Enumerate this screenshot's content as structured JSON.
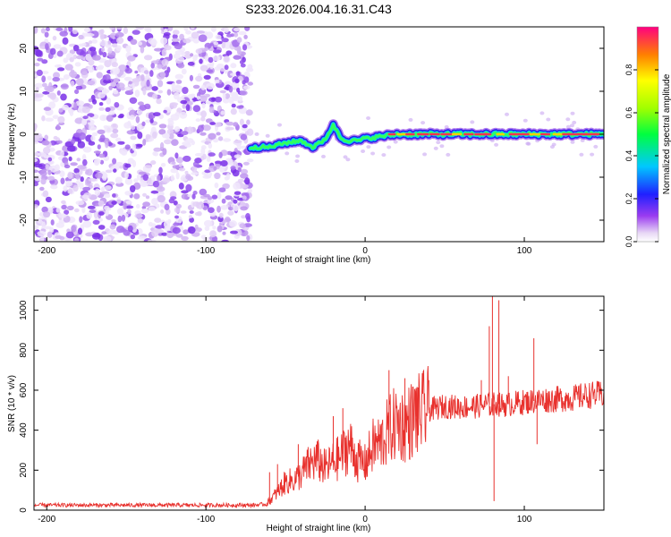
{
  "figure": {
    "title": "S233.2026.004.16.31.C43"
  },
  "chart_data": [
    {
      "type": "heatmap",
      "name": "spectrogram",
      "xlabel": "Height of straight line (km)",
      "ylabel": "Frequency (Hz)",
      "xlim": [
        -208,
        150
      ],
      "ylim": [
        -25,
        25
      ],
      "x_ticks": [
        -200,
        -100,
        0,
        100
      ],
      "y_ticks": [
        -20,
        -10,
        0,
        10,
        20
      ],
      "noise_region_x": [
        -208,
        -72
      ],
      "signal_track": {
        "x": [
          -72,
          -60,
          -50,
          -40,
          -33,
          -28,
          -25,
          -20,
          -18,
          -15,
          -10,
          -5,
          0,
          10,
          20,
          40,
          60,
          80,
          100,
          120,
          150
        ],
        "freq": [
          -3,
          -3,
          -2,
          -1.5,
          -3,
          -2,
          -1,
          2,
          1,
          -1,
          -1.5,
          -1.5,
          -1,
          -0.5,
          0,
          0,
          0,
          0,
          0,
          0,
          0
        ]
      },
      "colorbar": {
        "label": "Normalized spectral amplitude",
        "range": [
          0,
          1
        ],
        "ticks": [
          "0.0",
          "0.2",
          "0.4",
          "0.6",
          "0.8"
        ]
      }
    },
    {
      "type": "line",
      "name": "snr",
      "xlabel": "Height of straight line (km)",
      "ylabel": "SNR (10 * v/v)",
      "xlim": [
        -208,
        150
      ],
      "ylim": [
        0,
        1070
      ],
      "x_ticks": [
        -200,
        -100,
        0,
        100
      ],
      "y_ticks": [
        0,
        200,
        400,
        600,
        800,
        1000
      ],
      "color": "#e8312d",
      "series": [
        {
          "name": "SNR",
          "x": [
            -208,
            -180,
            -150,
            -120,
            -90,
            -70,
            -62,
            -55,
            -50,
            -45,
            -40,
            -35,
            -30,
            -25,
            -20,
            -15,
            -10,
            -5,
            0,
            5,
            10,
            15,
            20,
            25,
            30,
            35,
            40,
            50,
            60,
            70,
            75,
            78,
            80,
            82,
            85,
            90,
            100,
            110,
            120,
            130,
            140,
            150
          ],
          "values": [
            25,
            25,
            25,
            25,
            25,
            25,
            30,
            90,
            140,
            150,
            180,
            230,
            250,
            210,
            240,
            270,
            330,
            250,
            230,
            320,
            340,
            400,
            440,
            420,
            460,
            480,
            500,
            520,
            515,
            520,
            525,
            530,
            520,
            540,
            525,
            530,
            540,
            550,
            555,
            560,
            575,
            580
          ]
        }
      ],
      "spikes": [
        {
          "x": -60,
          "value": 190
        },
        {
          "x": -55,
          "value": 230
        },
        {
          "x": -42,
          "value": 330
        },
        {
          "x": -30,
          "value": 340
        },
        {
          "x": -20,
          "value": 470
        },
        {
          "x": -14,
          "value": 510
        },
        {
          "x": 15,
          "value": 700
        },
        {
          "x": 25,
          "value": 660
        },
        {
          "x": 32,
          "value": 610
        },
        {
          "x": 40,
          "value": 650
        },
        {
          "x": 73,
          "value": 650
        },
        {
          "x": 78,
          "value": 920
        },
        {
          "x": 80,
          "value": 1070
        },
        {
          "x": 81,
          "value": 45
        },
        {
          "x": 84,
          "value": 1050
        },
        {
          "x": 90,
          "value": 670
        },
        {
          "x": 106,
          "value": 860
        },
        {
          "x": 108,
          "value": 330
        }
      ]
    }
  ]
}
